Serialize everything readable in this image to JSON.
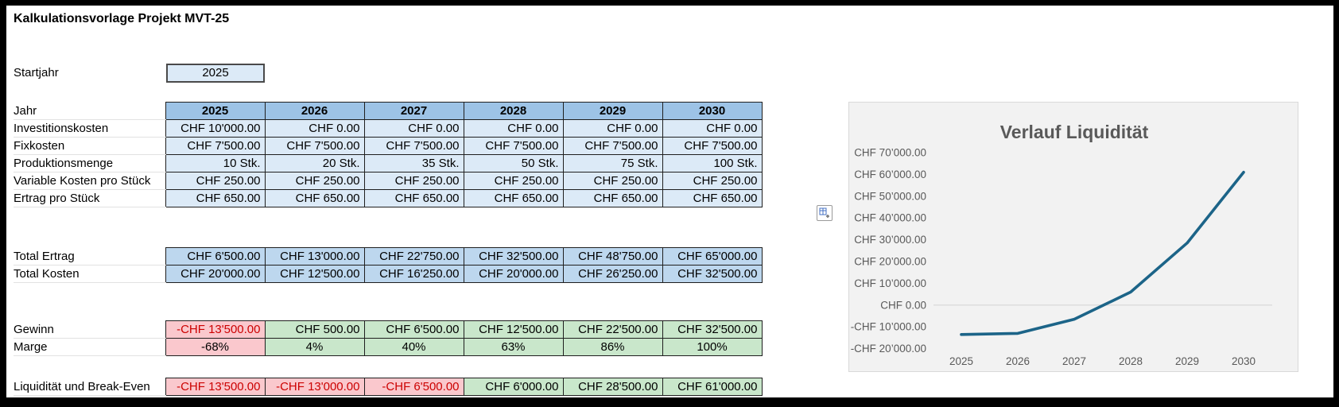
{
  "title": "Kalkulationsvorlage Projekt MVT-25",
  "startjahr": {
    "label": "Startjahr",
    "value": "2025"
  },
  "table": {
    "year_row": {
      "label": "Jahr",
      "values": [
        "2025",
        "2026",
        "2027",
        "2028",
        "2029",
        "2030"
      ]
    },
    "input_rows": [
      {
        "label": "Investitionskosten",
        "values": [
          "CHF 10'000.00",
          "CHF 0.00",
          "CHF 0.00",
          "CHF 0.00",
          "CHF 0.00",
          "CHF 0.00"
        ]
      },
      {
        "label": "Fixkosten",
        "values": [
          "CHF 7'500.00",
          "CHF 7'500.00",
          "CHF 7'500.00",
          "CHF 7'500.00",
          "CHF 7'500.00",
          "CHF 7'500.00"
        ]
      },
      {
        "label": "Produktionsmenge",
        "values": [
          "10 Stk.",
          "20 Stk.",
          "35 Stk.",
          "50 Stk.",
          "75 Stk.",
          "100 Stk."
        ]
      },
      {
        "label": "Variable Kosten pro Stück",
        "values": [
          "CHF 250.00",
          "CHF 250.00",
          "CHF 250.00",
          "CHF 250.00",
          "CHF 250.00",
          "CHF 250.00"
        ]
      },
      {
        "label": "Ertrag pro Stück",
        "values": [
          "CHF 650.00",
          "CHF 650.00",
          "CHF 650.00",
          "CHF 650.00",
          "CHF 650.00",
          "CHF 650.00"
        ]
      }
    ],
    "total_rows": [
      {
        "label": "Total Ertrag",
        "values": [
          "CHF 6'500.00",
          "CHF 13'000.00",
          "CHF 22'750.00",
          "CHF 32'500.00",
          "CHF 48'750.00",
          "CHF 65'000.00"
        ]
      },
      {
        "label": "Total Kosten",
        "values": [
          "CHF 20'000.00",
          "CHF 12'500.00",
          "CHF 16'250.00",
          "CHF 20'000.00",
          "CHF 26'250.00",
          "CHF 32'500.00"
        ]
      }
    ],
    "result_rows": [
      {
        "label": "Gewinn",
        "values": [
          "-CHF 13'500.00",
          "CHF 500.00",
          "CHF 6'500.00",
          "CHF 12'500.00",
          "CHF 22'500.00",
          "CHF 32'500.00"
        ],
        "cell_cls": [
          "red-bg red-text",
          "green-bg",
          "green-bg",
          "green-bg",
          "green-bg",
          "green-bg"
        ]
      },
      {
        "label": "Marge",
        "values": [
          "-68%",
          "4%",
          "40%",
          "63%",
          "86%",
          "100%"
        ],
        "cell_cls": [
          "red-bg center",
          "green-bg center",
          "green-bg center",
          "green-bg center",
          "green-bg center",
          "green-bg center"
        ]
      }
    ],
    "liquidity_row": {
      "label": "Liquidität und Break-Even",
      "values": [
        "-CHF 13'500.00",
        "-CHF 13'000.00",
        "-CHF 6'500.00",
        "CHF 6'000.00",
        "CHF 28'500.00",
        "CHF 61'000.00"
      ],
      "cell_cls": [
        "red-bg red-text",
        "red-bg red-text",
        "red-bg red-text",
        "green-bg",
        "green-bg",
        "green-bg"
      ]
    }
  },
  "icons": {
    "paste_options": "paste-options"
  },
  "colors": {
    "header_blue": "#9DC3E6",
    "data_blue": "#DCEAF7",
    "total_blue": "#BDD7EE",
    "red_bg": "#FAC8CD",
    "green_bg": "#C9E7CB",
    "red_text": "#CC0000",
    "chart_bg": "#F2F2F2",
    "chart_text": "#595959"
  },
  "chart_data": {
    "type": "line",
    "title": "Verlauf Liquidität",
    "x": [
      "2025",
      "2026",
      "2027",
      "2028",
      "2029",
      "2030"
    ],
    "series": [
      {
        "name": "Liquidität und Break-Even",
        "values": [
          -13500,
          -13000,
          -6500,
          6000,
          28500,
          61000
        ]
      }
    ],
    "ylim": [
      -20000,
      70000
    ],
    "ytick_step": 10000,
    "ytick_labels": [
      "CHF 70’000.00",
      "CHF 60’000.00",
      "CHF 50’000.00",
      "CHF 40’000.00",
      "CHF 30’000.00",
      "CHF 20’000.00",
      "CHF 10’000.00",
      "CHF 0.00",
      "-CHF 10’000.00",
      "-CHF 20’000.00"
    ],
    "gridline_at": 0,
    "line_color": "#1C6488",
    "legend": "none",
    "grid": "zero-line-only"
  }
}
